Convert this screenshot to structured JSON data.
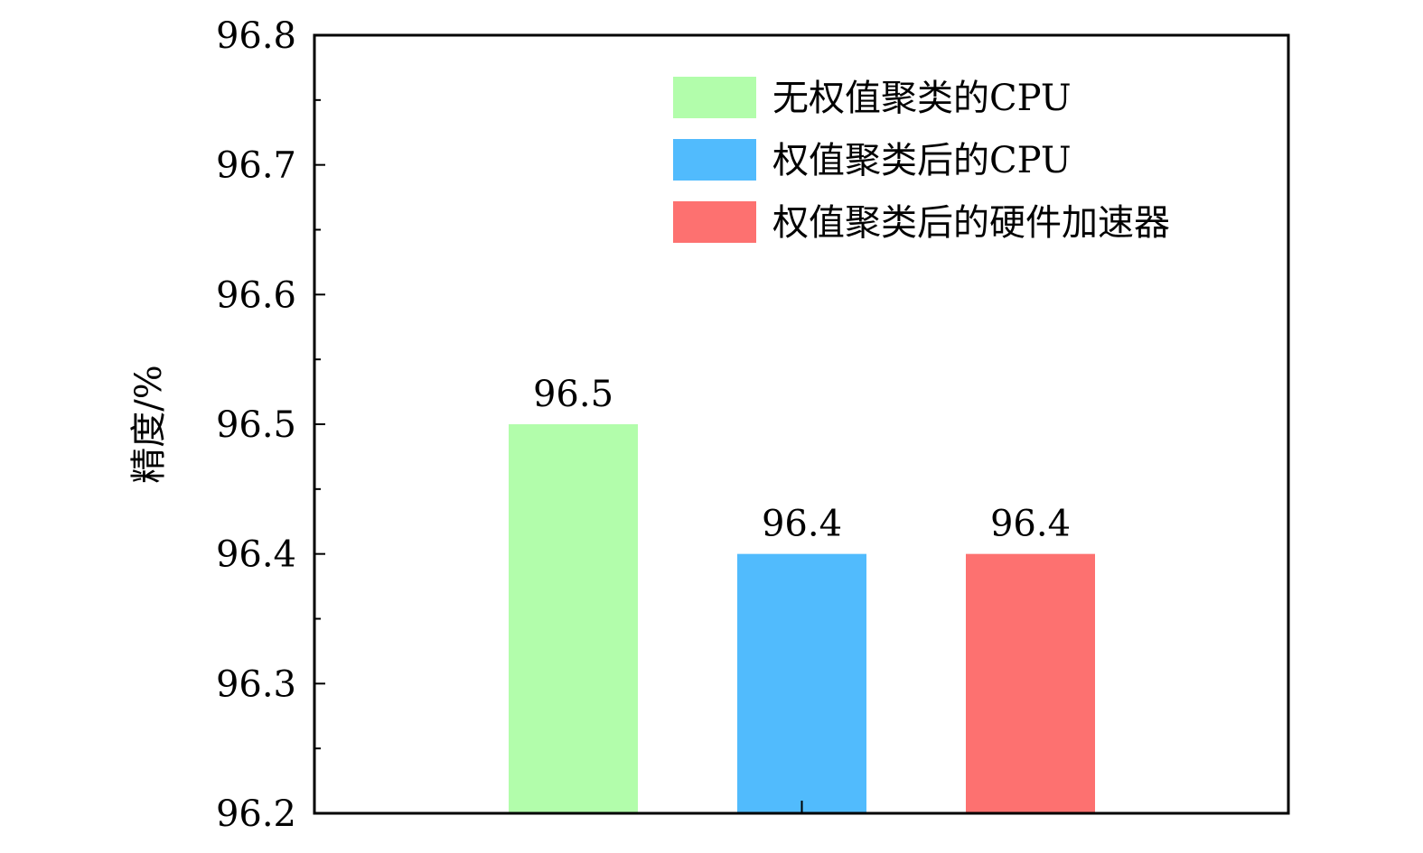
{
  "chart_data": {
    "type": "bar",
    "title": "",
    "xlabel": "",
    "ylabel": "精度/%",
    "ylim": [
      96.2,
      96.8
    ],
    "yticks": [
      "96.2",
      "96.3",
      "96.4",
      "96.5",
      "96.6",
      "96.7",
      "96.8"
    ],
    "grid": false,
    "legend_position": "top-right",
    "series": [
      {
        "name": "无权值聚类的CPU",
        "value": 96.5,
        "label": "96.5",
        "color": "#b2fdab"
      },
      {
        "name": "权值聚类后的CPU",
        "value": 96.4,
        "label": "96.4",
        "color": "#51bbfd"
      },
      {
        "name": "权值聚类后的硬件加速器",
        "value": 96.4,
        "label": "96.4",
        "color": "#fd7170"
      }
    ]
  }
}
